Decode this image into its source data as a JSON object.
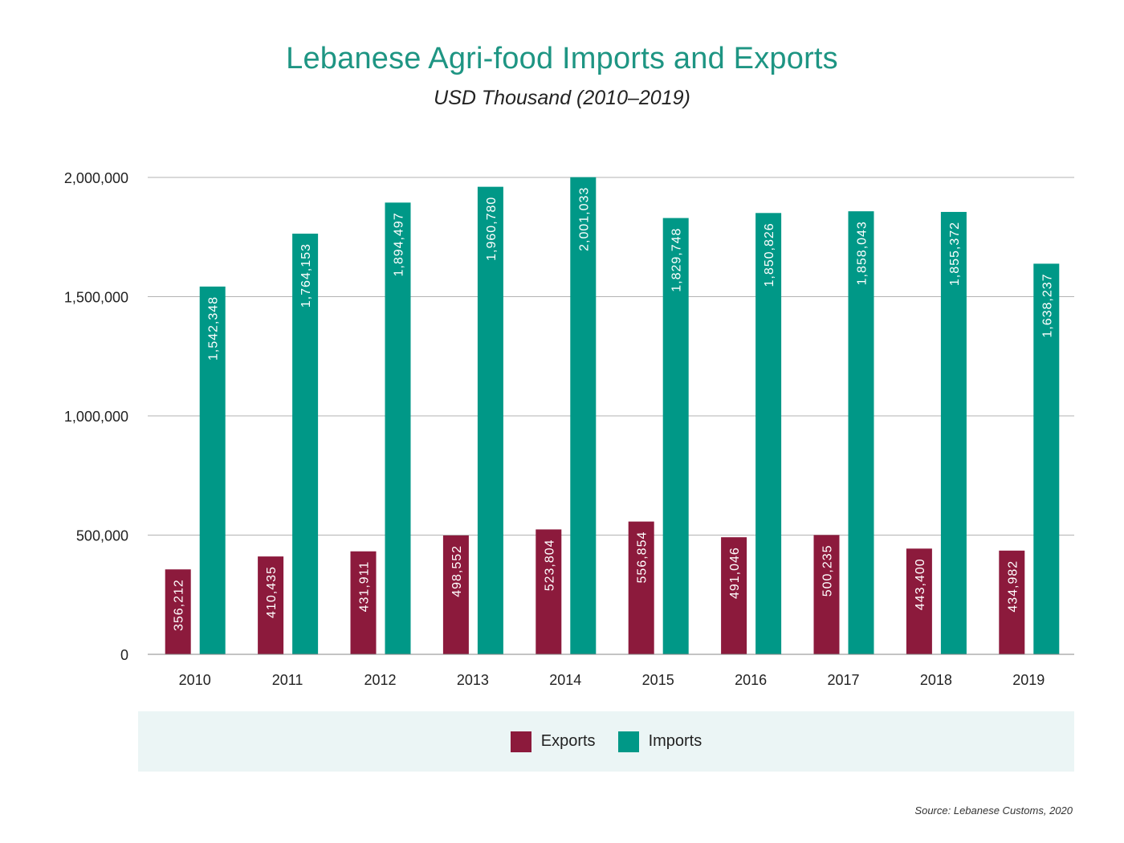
{
  "colors": {
    "exports": "#8c1a3c",
    "imports": "#009887",
    "title": "#1e9583",
    "grid": "#b3b3b3"
  },
  "chart_data": {
    "type": "bar",
    "title": "Lebanese Agri-food Imports and Exports",
    "subtitle": "USD Thousand (2010–2019)",
    "categories": [
      "2010",
      "2011",
      "2012",
      "2013",
      "2014",
      "2015",
      "2016",
      "2017",
      "2018",
      "2019"
    ],
    "series": [
      {
        "name": "Exports",
        "values": [
          356212,
          410435,
          431911,
          498552,
          523804,
          556854,
          491046,
          500235,
          443400,
          434982
        ],
        "labels": [
          "356,212",
          "410,435",
          "431,911",
          "498,552",
          "523,804",
          "556,854",
          "491,046",
          "500,235",
          "443,400",
          "434,982"
        ]
      },
      {
        "name": "Imports",
        "values": [
          1542348,
          1764153,
          1894497,
          1960780,
          2001033,
          1829748,
          1850826,
          1858043,
          1855372,
          1638237
        ],
        "labels": [
          "1,542,348",
          "1,764,153",
          "1,894,497",
          "1,960,780",
          "2,001,033",
          "1,829,748",
          "1,850,826",
          "1,858,043",
          "1,855,372",
          "1,638,237"
        ]
      }
    ],
    "ylim": [
      0,
      2000000
    ],
    "yticks": [
      0,
      500000,
      1000000,
      1500000,
      2000000
    ],
    "ytick_labels": [
      "0",
      "500,000",
      "1,000,000",
      "1,500,000",
      "2,000,000"
    ],
    "grid": true,
    "legend_position": "bottom",
    "xlabel": "",
    "ylabel": ""
  },
  "source": "Source: Lebanese Customs, 2020"
}
